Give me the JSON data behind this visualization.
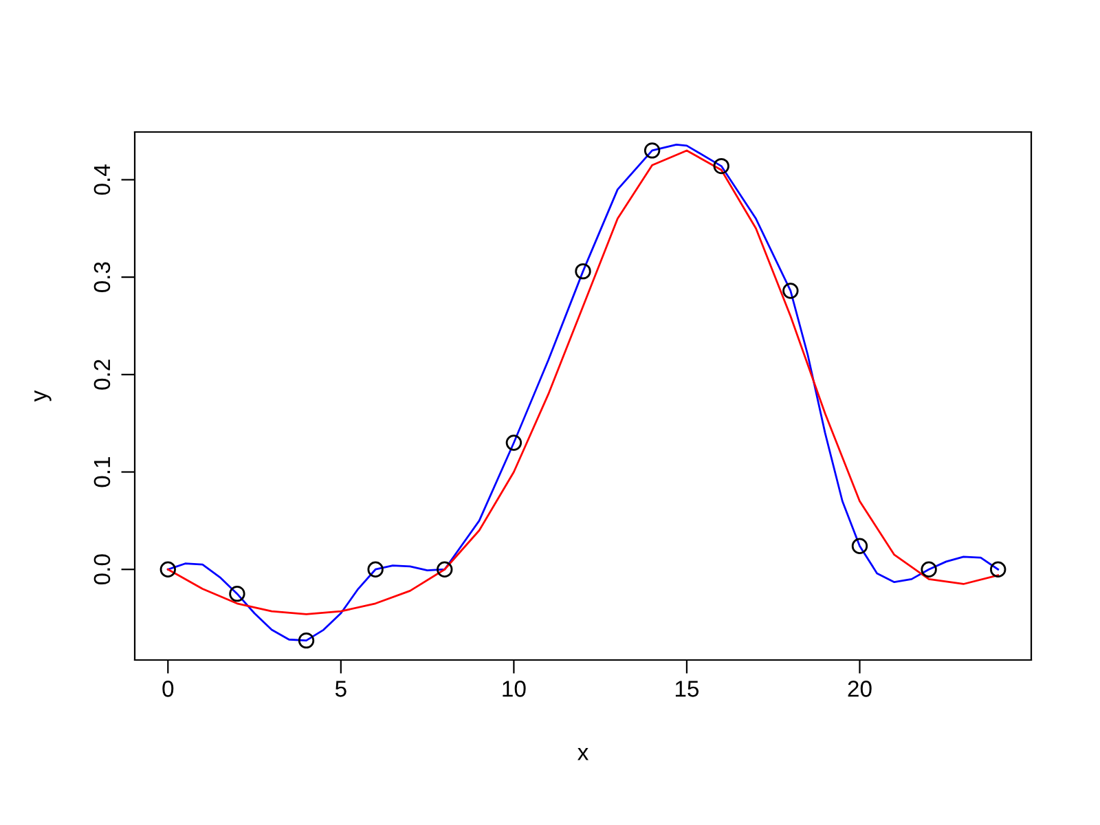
{
  "chart_data": {
    "type": "scatter",
    "xlabel": "x",
    "ylabel": "y",
    "xlim": [
      -0.96,
      24.96
    ],
    "ylim": [
      -0.093,
      0.449
    ],
    "xticks": [
      0,
      5,
      10,
      15,
      20
    ],
    "yticks": [
      {
        "value": 0,
        "label": "0.0"
      },
      0.1,
      0.2,
      0.3,
      0.4
    ],
    "grid": false,
    "legend": false,
    "series": [
      {
        "marker": "circle",
        "color": "#000000",
        "x": [
          0,
          2,
          4,
          6,
          8,
          10,
          12,
          14,
          16,
          18,
          20,
          22,
          24
        ],
        "values": [
          0,
          -0.025,
          -0.073,
          0,
          0,
          0.13,
          0.306,
          0.43,
          0.414,
          0.286,
          0.024,
          0,
          0
        ]
      },
      {
        "type": "line",
        "color": "#0000ff",
        "x": [
          0,
          0.5,
          1,
          1.5,
          2,
          2.5,
          3,
          3.5,
          4,
          4.5,
          5,
          5.5,
          6,
          6.5,
          7,
          7.5,
          8,
          9,
          10,
          11,
          12,
          13,
          14,
          14.7,
          15,
          16,
          17,
          18,
          18.5,
          19,
          19.5,
          20,
          20.5,
          21,
          21.5,
          22,
          22.5,
          23,
          23.5,
          24
        ],
        "values": [
          0,
          0.006,
          0.005,
          -0.008,
          -0.025,
          -0.045,
          -0.062,
          -0.072,
          -0.073,
          -0.062,
          -0.045,
          -0.02,
          0,
          0.004,
          0.003,
          -0.001,
          0,
          0.05,
          0.13,
          0.215,
          0.306,
          0.39,
          0.43,
          0.436,
          0.435,
          0.414,
          0.36,
          0.286,
          0.22,
          0.14,
          0.07,
          0.024,
          -0.004,
          -0.013,
          -0.01,
          0,
          0.008,
          0.013,
          0.012,
          0
        ]
      },
      {
        "type": "line",
        "color": "#ff0000",
        "x": [
          0,
          1,
          2,
          3,
          4,
          5,
          6,
          7,
          8,
          9,
          10,
          11,
          12,
          13,
          14,
          15,
          16,
          17,
          18,
          19,
          20,
          21,
          22,
          23,
          24
        ],
        "values": [
          0,
          -0.02,
          -0.035,
          -0.043,
          -0.046,
          -0.043,
          -0.035,
          -0.022,
          0,
          0.04,
          0.1,
          0.18,
          0.27,
          0.36,
          0.415,
          0.43,
          0.41,
          0.35,
          0.26,
          0.16,
          0.07,
          0.015,
          -0.01,
          -0.015,
          -0.006
        ]
      }
    ]
  }
}
